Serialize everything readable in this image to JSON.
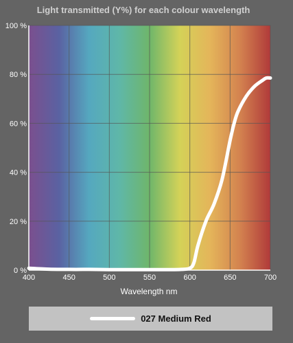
{
  "chart_data": {
    "type": "line",
    "title": "Light transmitted (Y%) for each colour wavelength",
    "xlabel": "Wavelength nm",
    "ylabel": "",
    "xlim": [
      400,
      700
    ],
    "ylim": [
      0,
      100
    ],
    "x_ticks": [
      400,
      450,
      500,
      550,
      600,
      650,
      700
    ],
    "x_tick_labels": [
      "400",
      "450",
      "500",
      "550",
      "600",
      "650",
      "700"
    ],
    "y_ticks": [
      0,
      20,
      40,
      60,
      80,
      100
    ],
    "y_tick_labels": [
      "0 %",
      "20 %",
      "40 %",
      "60 %",
      "80 %",
      "100 %"
    ],
    "grid": true,
    "background": "visible spectrum gradient",
    "spectrum_colors": [
      "#7b4f8e",
      "#5a62a2",
      "#55a8bf",
      "#5fb7a8",
      "#6fb66a",
      "#d4d258",
      "#e4b55a",
      "#d3824f",
      "#b03a3a"
    ],
    "line_color": "#ffffff",
    "legend_position": "bottom",
    "series": [
      {
        "name": "027 Medium Red",
        "x": [
          400,
          425,
          450,
          475,
          500,
          525,
          550,
          575,
          590,
          600,
          605,
          610,
          620,
          630,
          640,
          650,
          655,
          660,
          670,
          680,
          690,
          695,
          700
        ],
        "y": [
          0.8,
          0.4,
          0.3,
          0.3,
          0.2,
          0.2,
          0.2,
          0.2,
          0.3,
          0.8,
          3,
          10,
          20,
          27,
          37,
          53,
          60,
          65,
          71,
          75,
          77.5,
          78.5,
          78.5
        ]
      }
    ]
  },
  "legend": {
    "label": "027 Medium Red"
  }
}
